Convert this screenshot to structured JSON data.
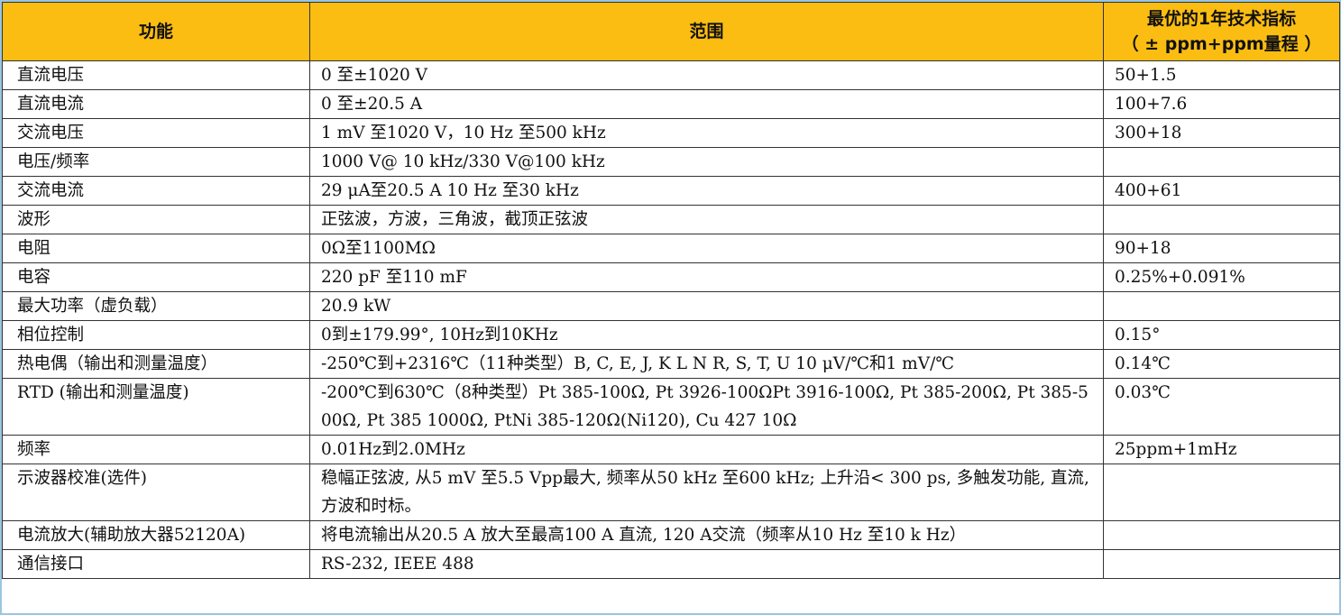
{
  "table": {
    "header": [
      [
        "功能"
      ],
      [
        "范围"
      ],
      [
        "最优的1年技术指标",
        "（ ± ppm+ppm量程 ）"
      ]
    ],
    "rows": [
      [
        "直流电压",
        "0 至±1020 V",
        "50+1.5"
      ],
      [
        "直流电流",
        "0 至±20.5 A",
        "100+7.6"
      ],
      [
        "交流电压",
        "1 mV 至1020 V，10 Hz 至500 kHz",
        "300+18"
      ],
      [
        "电压/频率",
        "1000 V@ 10 kHz/330 V@100 kHz",
        null
      ],
      [
        "交流电流",
        "29 μA至20.5 A 10 Hz 至30 kHz",
        "400+61"
      ],
      [
        "波形",
        "正弦波，方波，三角波，截顶正弦波",
        null
      ],
      [
        "电阻",
        "0Ω至1100MΩ",
        "90+18"
      ],
      [
        "电容",
        "220 pF 至110 mF",
        "0.25%+0.091%"
      ],
      [
        "最大功率（虚负载）",
        "20.9 kW",
        null
      ],
      [
        "相位控制",
        "0到±179.99°, 10Hz到10KHz",
        "0.15°"
      ],
      [
        "热电偶（输出和测量温度）",
        "-250℃到+2316℃（11种类型）B, C, E, J, K L N R, S, T, U 10 μV/℃和1 mV/℃",
        "0.14℃"
      ],
      [
        "RTD (输出和测量温度)",
        "-200℃到630℃（8种类型）Pt 385-100Ω, Pt 3926-100ΩPt 3916-100Ω, Pt 385-200Ω, Pt 385-500Ω, Pt 385 1000Ω, PtNi 385-120Ω(Ni120), Cu 427 10Ω",
        "0.03℃"
      ],
      [
        "频率",
        "0.01Hz到2.0MHz",
        "25ppm+1mHz"
      ],
      [
        "示波器校准(选件)",
        "稳幅正弦波, 从5 mV 至5.5 Vpp最大, 频率从50 kHz 至600 kHz; 上升沿< 300 ps, 多触发功能, 直流, 方波和时标。",
        null
      ],
      [
        "电流放大(辅助放大器52120A)",
        "将电流输出从20.5 A 放大至最高100 A 直流, 120 A交流（频率从10 Hz 至10 k Hz）",
        null
      ],
      [
        "通信接口",
        "RS-232, IEEE 488",
        null
      ]
    ]
  }
}
